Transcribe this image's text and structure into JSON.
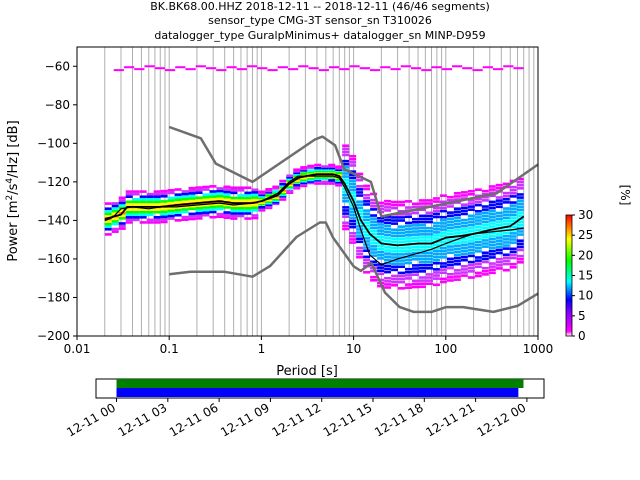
{
  "title_lines": [
    "BK.BK68.00.HHZ   2018-12-11 -- 2018-12-11  (46/46 segments)",
    "sensor_type CMG-3T sensor_sn T310026",
    "datalogger_type GuralpMinimus+ datalogger_sn MINP-D959"
  ],
  "chart_data": {
    "type": "heatmap",
    "xlabel": "Period [s]",
    "ylabel_prefix": "Power [m",
    "ylabel_sup1": "2",
    "ylabel_mid": "/s",
    "ylabel_sup2": "4",
    "ylabel_suffix": "/Hz] [dB]",
    "x_scale": "log",
    "xlim": [
      0.01,
      1000
    ],
    "ylim": [
      -200,
      -50
    ],
    "x_ticks": [
      {
        "v": 0.01,
        "label": "0.01"
      },
      {
        "v": 0.1,
        "label": "0.1"
      },
      {
        "v": 1,
        "label": "1"
      },
      {
        "v": 10,
        "label": "10"
      },
      {
        "v": 100,
        "label": "100"
      },
      {
        "v": 1000,
        "label": "1000"
      }
    ],
    "y_ticks": [
      -60,
      -80,
      -100,
      -120,
      -140,
      -160,
      -180,
      -200
    ],
    "grid": "vertical minor grid",
    "mean_curve": [
      [
        0.02,
        -140
      ],
      [
        0.025,
        -138
      ],
      [
        0.03,
        -137
      ],
      [
        0.035,
        -133
      ],
      [
        0.05,
        -133
      ],
      [
        0.08,
        -133
      ],
      [
        0.12,
        -132
      ],
      [
        0.2,
        -131
      ],
      [
        0.35,
        -130
      ],
      [
        0.5,
        -131
      ],
      [
        0.8,
        -131
      ],
      [
        1.0,
        -130
      ],
      [
        1.5,
        -127
      ],
      [
        2.0,
        -121
      ],
      [
        2.5,
        -118
      ],
      [
        3.0,
        -117
      ],
      [
        4.0,
        -116
      ],
      [
        5.0,
        -116
      ],
      [
        6.0,
        -116
      ],
      [
        7.0,
        -117
      ],
      [
        8.0,
        -121
      ],
      [
        10,
        -130
      ],
      [
        12,
        -140
      ],
      [
        15,
        -147
      ],
      [
        20,
        -152
      ],
      [
        30,
        -153
      ],
      [
        50,
        -152
      ],
      [
        70,
        -152
      ],
      [
        100,
        -149
      ],
      [
        150,
        -148
      ],
      [
        200,
        -147
      ],
      [
        300,
        -145
      ],
      [
        500,
        -143
      ],
      [
        700,
        -138
      ]
    ],
    "mode_curve": [
      [
        0.02,
        -139
      ],
      [
        0.025,
        -138
      ],
      [
        0.03,
        -134
      ],
      [
        0.04,
        -133
      ],
      [
        0.06,
        -134
      ],
      [
        0.08,
        -133
      ],
      [
        0.12,
        -133
      ],
      [
        0.2,
        -132
      ],
      [
        0.35,
        -131
      ],
      [
        0.5,
        -132
      ],
      [
        0.8,
        -131
      ],
      [
        1.0,
        -130
      ],
      [
        1.5,
        -126
      ],
      [
        2.0,
        -120
      ],
      [
        2.5,
        -117
      ],
      [
        3.0,
        -117
      ],
      [
        4.0,
        -117
      ],
      [
        5.0,
        -117
      ],
      [
        6.0,
        -117
      ],
      [
        7.0,
        -118
      ],
      [
        8.0,
        -123
      ],
      [
        10,
        -133
      ],
      [
        12,
        -145
      ],
      [
        15,
        -158
      ],
      [
        20,
        -163
      ],
      [
        30,
        -160
      ],
      [
        50,
        -157
      ],
      [
        70,
        -155
      ],
      [
        100,
        -152
      ],
      [
        150,
        -149
      ],
      [
        200,
        -147
      ],
      [
        300,
        -146
      ],
      [
        500,
        -145
      ],
      [
        700,
        -144
      ]
    ],
    "nhnm_curve": [
      [
        0.1,
        -91.5
      ],
      [
        0.22,
        -97.4
      ],
      [
        0.32,
        -110.5
      ],
      [
        0.8,
        -120
      ],
      [
        3.8,
        -98
      ],
      [
        4.6,
        -96.5
      ],
      [
        6.3,
        -101
      ],
      [
        7.9,
        -113.5
      ],
      [
        15.4,
        -120
      ],
      [
        20,
        -138
      ],
      [
        354.8,
        -126
      ],
      [
        1000,
        -111
      ]
    ],
    "nlnm_curve": [
      [
        0.1,
        -168
      ],
      [
        0.17,
        -166.7
      ],
      [
        0.4,
        -166.7
      ],
      [
        0.8,
        -169.2
      ],
      [
        1.24,
        -163.7
      ],
      [
        2.4,
        -148.6
      ],
      [
        4.3,
        -141.1
      ],
      [
        5.0,
        -141.1
      ],
      [
        6.0,
        -149
      ],
      [
        10,
        -163.8
      ],
      [
        12,
        -166.2
      ],
      [
        15.6,
        -162.1
      ],
      [
        21.9,
        -177.5
      ],
      [
        31.6,
        -185
      ],
      [
        45,
        -187.5
      ],
      [
        70,
        -187.5
      ],
      [
        101,
        -185
      ],
      [
        154,
        -185
      ],
      [
        328,
        -187.5
      ],
      [
        600,
        -184.4
      ],
      [
        1000,
        -178
      ]
    ],
    "colorbar": {
      "label": "[%]",
      "ticks": [
        0,
        5,
        10,
        15,
        20,
        25,
        30
      ],
      "colors": [
        "#ffffff",
        "#ff00ff",
        "#0000ff",
        "#00ffff",
        "#00ff00",
        "#ffff00",
        "#ff7f00",
        "#ff0000"
      ]
    },
    "timeline": {
      "ticks": [
        "12-11 00",
        "12-11 03",
        "12-11 06",
        "12-11 09",
        "12-11 12",
        "12-11 15",
        "12-11 18",
        "12-11 21",
        "12-12 00"
      ],
      "bars": [
        {
          "color": "#008000",
          "start_h": 0.0,
          "end_h": 23.8
        },
        {
          "color": "#0000ff",
          "start_h": 0.0,
          "end_h": 23.5
        }
      ],
      "range_h": [
        -1.2,
        25.0
      ]
    },
    "colors": {
      "mean": "#000000",
      "noise_models": "#6e6e6e",
      "grid": "#b0b0b0"
    }
  }
}
